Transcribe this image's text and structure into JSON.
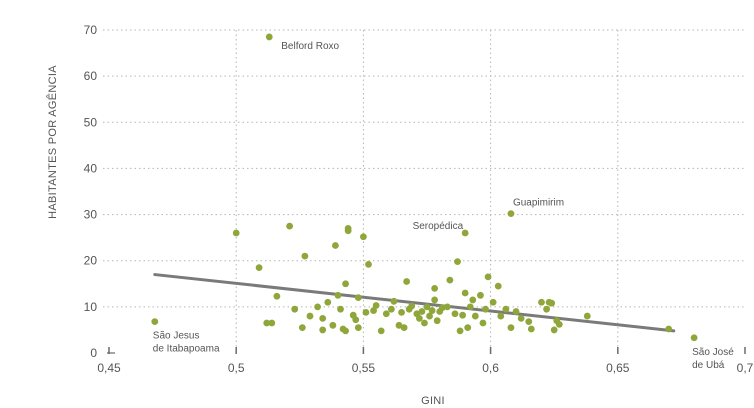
{
  "chart_data": {
    "type": "scatter",
    "title": "",
    "xlabel": "GINI",
    "ylabel": "HABITANTES POR AGÊNCIA",
    "xlim": [
      0.45,
      0.7
    ],
    "ylim": [
      0,
      70
    ],
    "x_ticks": [
      0.45,
      0.5,
      0.55,
      0.6,
      0.65,
      0.7
    ],
    "x_tick_labels": [
      "0,45",
      "0,5",
      "0,55",
      "0,6",
      "0,65",
      "0,7"
    ],
    "y_ticks": [
      0,
      10,
      20,
      30,
      40,
      50,
      60,
      70
    ],
    "y_tick_labels": [
      "0",
      "10",
      "20",
      "30",
      "40",
      "50",
      "60",
      "70"
    ],
    "grid": {
      "horizontal": true,
      "vertical": true,
      "style": "dotted"
    },
    "point_color": "#8fa63a",
    "trend_color": "#7a7a7a",
    "trendline": {
      "x": [
        0.468,
        0.672
      ],
      "y": [
        17,
        4.8
      ]
    },
    "annotations": [
      {
        "lines": [
          "Belford Roxo"
        ],
        "x": 0.513,
        "y": 68.5
      },
      {
        "lines": [
          "Guapimirim"
        ],
        "x": 0.608,
        "y": 30.2
      },
      {
        "lines": [
          "Seropédica"
        ],
        "x": 0.59,
        "y": 26
      },
      {
        "lines": [
          "São Jesus",
          "de Itabapoama"
        ],
        "x": 0.468,
        "y": 6.8
      },
      {
        "lines": [
          "São José",
          "de Ubá"
        ],
        "x": 0.68,
        "y": 3.3
      }
    ],
    "points": [
      {
        "x": 0.468,
        "y": 6.8
      },
      {
        "x": 0.5,
        "y": 26
      },
      {
        "x": 0.509,
        "y": 18.5
      },
      {
        "x": 0.512,
        "y": 6.5
      },
      {
        "x": 0.513,
        "y": 68.5
      },
      {
        "x": 0.514,
        "y": 6.5
      },
      {
        "x": 0.516,
        "y": 12.3
      },
      {
        "x": 0.521,
        "y": 27.5
      },
      {
        "x": 0.523,
        "y": 9.5
      },
      {
        "x": 0.526,
        "y": 5.5
      },
      {
        "x": 0.527,
        "y": 21
      },
      {
        "x": 0.529,
        "y": 8
      },
      {
        "x": 0.532,
        "y": 10
      },
      {
        "x": 0.534,
        "y": 5
      },
      {
        "x": 0.534,
        "y": 7.5
      },
      {
        "x": 0.536,
        "y": 11
      },
      {
        "x": 0.538,
        "y": 6
      },
      {
        "x": 0.539,
        "y": 23.3
      },
      {
        "x": 0.54,
        "y": 12.5
      },
      {
        "x": 0.541,
        "y": 9.5
      },
      {
        "x": 0.542,
        "y": 5.2
      },
      {
        "x": 0.543,
        "y": 15
      },
      {
        "x": 0.543,
        "y": 4.8
      },
      {
        "x": 0.544,
        "y": 27
      },
      {
        "x": 0.544,
        "y": 26.5
      },
      {
        "x": 0.546,
        "y": 8.2
      },
      {
        "x": 0.547,
        "y": 7.2
      },
      {
        "x": 0.548,
        "y": 12
      },
      {
        "x": 0.548,
        "y": 5.5
      },
      {
        "x": 0.55,
        "y": 25.2
      },
      {
        "x": 0.551,
        "y": 8.8
      },
      {
        "x": 0.552,
        "y": 19.2
      },
      {
        "x": 0.554,
        "y": 9.2
      },
      {
        "x": 0.555,
        "y": 10.3
      },
      {
        "x": 0.557,
        "y": 4.8
      },
      {
        "x": 0.559,
        "y": 8.5
      },
      {
        "x": 0.561,
        "y": 9.5
      },
      {
        "x": 0.562,
        "y": 11.2
      },
      {
        "x": 0.564,
        "y": 6
      },
      {
        "x": 0.565,
        "y": 8.8
      },
      {
        "x": 0.566,
        "y": 5.5
      },
      {
        "x": 0.567,
        "y": 15.5
      },
      {
        "x": 0.568,
        "y": 9.5
      },
      {
        "x": 0.569,
        "y": 10.2
      },
      {
        "x": 0.571,
        "y": 8.5
      },
      {
        "x": 0.572,
        "y": 7.5
      },
      {
        "x": 0.573,
        "y": 9
      },
      {
        "x": 0.574,
        "y": 6.5
      },
      {
        "x": 0.575,
        "y": 10
      },
      {
        "x": 0.576,
        "y": 8
      },
      {
        "x": 0.577,
        "y": 9.2
      },
      {
        "x": 0.578,
        "y": 11.5
      },
      {
        "x": 0.578,
        "y": 14
      },
      {
        "x": 0.579,
        "y": 7
      },
      {
        "x": 0.58,
        "y": 9
      },
      {
        "x": 0.581,
        "y": 9.8
      },
      {
        "x": 0.583,
        "y": 10
      },
      {
        "x": 0.584,
        "y": 15.8
      },
      {
        "x": 0.586,
        "y": 8.5
      },
      {
        "x": 0.587,
        "y": 19.8
      },
      {
        "x": 0.588,
        "y": 4.8
      },
      {
        "x": 0.589,
        "y": 8.2
      },
      {
        "x": 0.59,
        "y": 13
      },
      {
        "x": 0.59,
        "y": 26
      },
      {
        "x": 0.591,
        "y": 5.5
      },
      {
        "x": 0.592,
        "y": 10
      },
      {
        "x": 0.593,
        "y": 11.5
      },
      {
        "x": 0.594,
        "y": 8
      },
      {
        "x": 0.596,
        "y": 12.5
      },
      {
        "x": 0.597,
        "y": 6.5
      },
      {
        "x": 0.598,
        "y": 9.5
      },
      {
        "x": 0.599,
        "y": 16.5
      },
      {
        "x": 0.601,
        "y": 11
      },
      {
        "x": 0.603,
        "y": 14.5
      },
      {
        "x": 0.604,
        "y": 8
      },
      {
        "x": 0.606,
        "y": 9.5
      },
      {
        "x": 0.608,
        "y": 30.2
      },
      {
        "x": 0.608,
        "y": 5.5
      },
      {
        "x": 0.61,
        "y": 9
      },
      {
        "x": 0.612,
        "y": 7.5
      },
      {
        "x": 0.615,
        "y": 6.8
      },
      {
        "x": 0.616,
        "y": 5.2
      },
      {
        "x": 0.62,
        "y": 11
      },
      {
        "x": 0.622,
        "y": 9.5
      },
      {
        "x": 0.623,
        "y": 11
      },
      {
        "x": 0.624,
        "y": 10.8
      },
      {
        "x": 0.625,
        "y": 5
      },
      {
        "x": 0.626,
        "y": 7
      },
      {
        "x": 0.627,
        "y": 6.2
      },
      {
        "x": 0.638,
        "y": 8
      },
      {
        "x": 0.67,
        "y": 5.2
      },
      {
        "x": 0.68,
        "y": 3.3
      }
    ]
  }
}
